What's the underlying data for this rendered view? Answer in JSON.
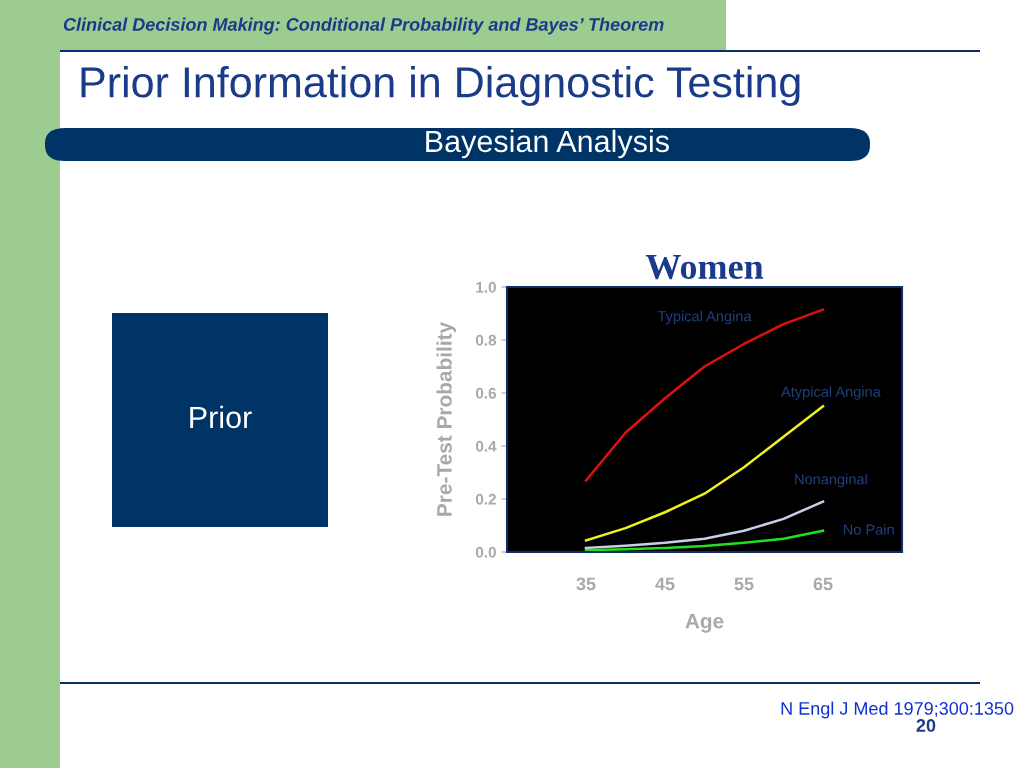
{
  "chart_data": {
    "type": "line",
    "title": "Women",
    "xlabel": "Age",
    "ylabel": "Pre-Test Probability",
    "x": [
      35,
      40,
      45,
      50,
      55,
      60,
      65
    ],
    "series": [
      {
        "name": "Typical Angina",
        "color": "#e01010",
        "values": [
          0.27,
          0.45,
          0.58,
          0.7,
          0.785,
          0.86,
          0.915
        ]
      },
      {
        "name": "Atypical Angina",
        "color": "#f0f020",
        "values": [
          0.044,
          0.09,
          0.15,
          0.22,
          0.32,
          0.435,
          0.55
        ]
      },
      {
        "name": "Nonanginal",
        "color": "#c8d0e8",
        "values": [
          0.015,
          0.024,
          0.035,
          0.05,
          0.08,
          0.125,
          0.19
        ]
      },
      {
        "name": "No Pain",
        "color": "#20e020",
        "values": [
          0.007,
          0.01,
          0.015,
          0.023,
          0.035,
          0.05,
          0.08
        ]
      }
    ],
    "xlim": [
      25,
      75
    ],
    "xticks": [
      35,
      45,
      55,
      65
    ],
    "ylim": [
      0,
      1
    ],
    "yticks": [
      {
        "value": 0,
        "label": "0.0"
      },
      0.2,
      0.4,
      0.6,
      0.8,
      {
        "value": 1,
        "label": "1.0"
      }
    ],
    "grid": false,
    "legend": false,
    "marker": "none",
    "line_style": "solid",
    "annotations": [
      "Clinical Decision Making: Conditional Probability and Bayes’ Theorem",
      "Prior Information in Diagnostic Testing",
      "Bayesian Analysis",
      "Prior",
      "N Engl J Med 1979;300:1350",
      "20"
    ]
  }
}
